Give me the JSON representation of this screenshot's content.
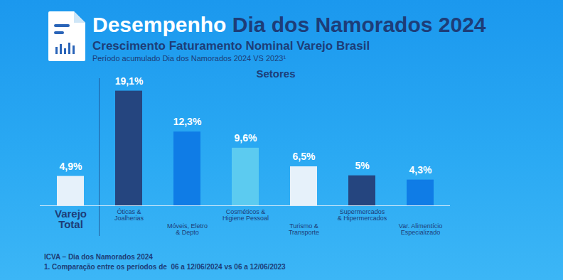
{
  "chart_data": {
    "type": "bar",
    "title": "Desempenho Dia dos Namorados 2024",
    "subtitle": "Crescimento Faturamento Nominal Varejo Brasil",
    "period": "Período acumulado Dia dos Namorados 2024 VS 2023¹",
    "section_label": "Setores",
    "categories": [
      "Varejo\nTotal",
      "Óticas &\nJoalherias",
      "Móveis, Eletro\n& Depto",
      "Cosméticos &\nHigiene Pessoal",
      "Turismo &\nTransporte",
      "Supermercados\n& Hipermercados",
      "Var. Alimentício\nEspecializado"
    ],
    "values": [
      4.9,
      19.1,
      12.3,
      9.6,
      6.5,
      5,
      4.3
    ],
    "value_labels": [
      "4,9%",
      "19,1%",
      "12,3%",
      "9,6%",
      "6,5%",
      "5%",
      "4,3%"
    ],
    "colors": [
      "#e6f1fa",
      "#25457f",
      "#0f7ce6",
      "#5ccbf0",
      "#e6f1fa",
      "#25457f",
      "#0f7ce6"
    ],
    "ylim": [
      0,
      20
    ],
    "yticks": [],
    "data_labels": true,
    "tick_labels": "x",
    "source": "ICVA – Dia dos Namorados 2024",
    "footnote": "1. Comparação entre os períodos de  06 a 12/06/2024 vs 06 a 12/06/2023"
  }
}
